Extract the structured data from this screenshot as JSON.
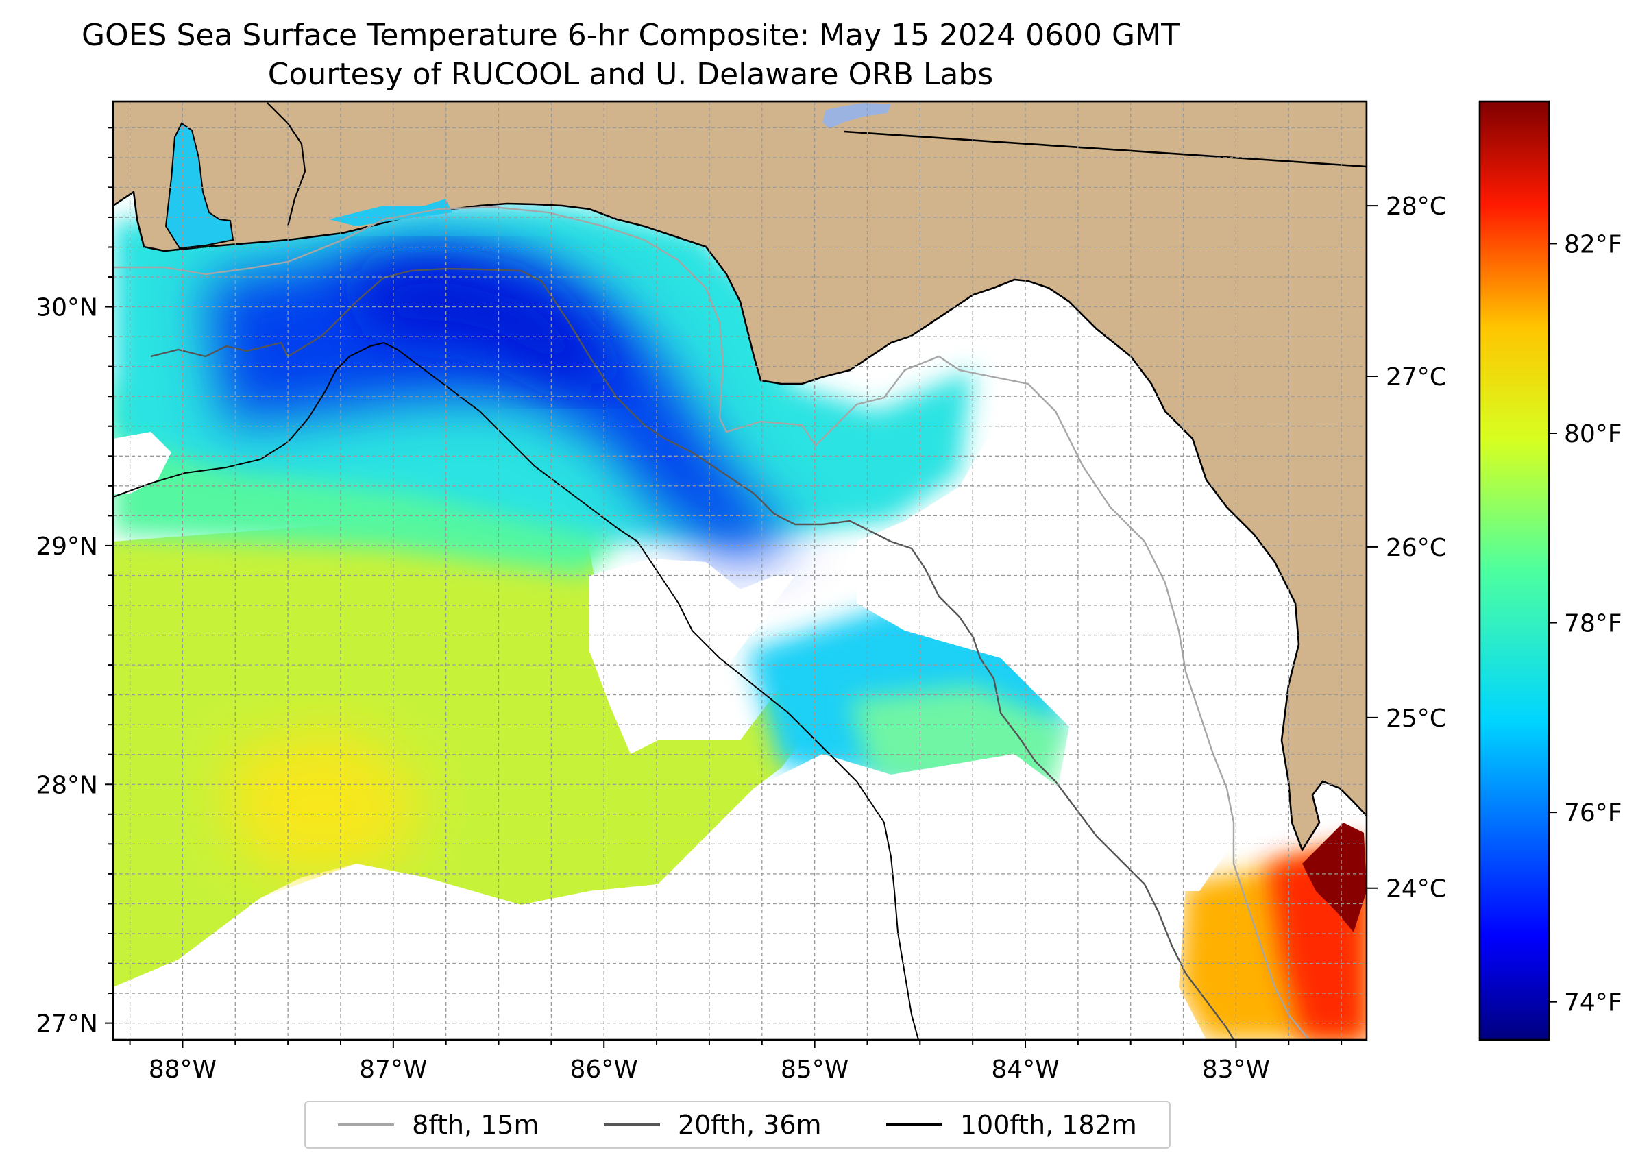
{
  "title": {
    "line1": "GOES Sea Surface Temperature 6-hr Composite: May 15 2024 0600 GMT",
    "line2": "Courtesy of RUCOOL and U. Delaware ORB Labs"
  },
  "map": {
    "lon_range": [
      -88.33,
      -82.38
    ],
    "lat_range": [
      26.93,
      30.86
    ],
    "lon_ticks": [
      {
        "value": -88,
        "label": "88°W"
      },
      {
        "value": -87,
        "label": "87°W"
      },
      {
        "value": -86,
        "label": "86°W"
      },
      {
        "value": -85,
        "label": "85°W"
      },
      {
        "value": -84,
        "label": "84°W"
      },
      {
        "value": -83,
        "label": "83°W"
      }
    ],
    "lat_ticks": [
      {
        "value": 30,
        "label": "30°N"
      },
      {
        "value": 29,
        "label": "29°N"
      },
      {
        "value": 28,
        "label": "28°N"
      },
      {
        "value": 27,
        "label": "27°N"
      }
    ],
    "gridlines": true,
    "land_color": "#d2b48c"
  },
  "colorbar": {
    "colormap": "jet",
    "range_f": [
      73.6,
      83.5
    ],
    "fahrenheit_ticks": [
      {
        "value": 74,
        "label": "74°F"
      },
      {
        "value": 76,
        "label": "76°F"
      },
      {
        "value": 78,
        "label": "78°F"
      },
      {
        "value": 80,
        "label": "80°F"
      },
      {
        "value": 82,
        "label": "82°F"
      }
    ],
    "celsius_ticks": [
      {
        "value": 24,
        "label": "24°C"
      },
      {
        "value": 25,
        "label": "25°C"
      },
      {
        "value": 26,
        "label": "26°C"
      },
      {
        "value": 27,
        "label": "27°C"
      },
      {
        "value": 28,
        "label": "28°C"
      }
    ]
  },
  "legend": {
    "placement": "bottom-center",
    "items": [
      {
        "label": "8fth, 15m",
        "color": "#a6a6a6"
      },
      {
        "label": "20fth, 36m",
        "color": "#555555"
      },
      {
        "label": "100fth, 182m",
        "color": "#000000"
      }
    ]
  }
}
